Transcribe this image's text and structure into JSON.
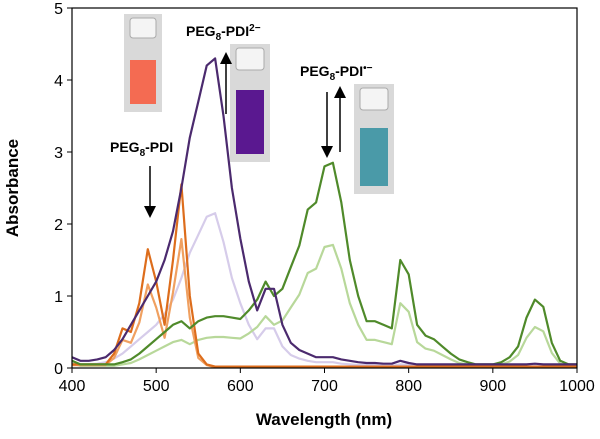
{
  "chart_data": {
    "type": "line",
    "xlabel": "Wavelength (nm)",
    "ylabel": "Absorbance",
    "xlim": [
      400,
      1000
    ],
    "ylim": [
      0,
      5
    ],
    "xticks": [
      400,
      500,
      600,
      700,
      800,
      900,
      1000
    ],
    "yticks": [
      0,
      1,
      2,
      3,
      4,
      5
    ],
    "x": [
      400,
      410,
      420,
      430,
      440,
      450,
      460,
      470,
      480,
      490,
      500,
      510,
      520,
      530,
      540,
      550,
      560,
      570,
      580,
      590,
      600,
      610,
      620,
      630,
      640,
      650,
      660,
      670,
      680,
      690,
      700,
      710,
      720,
      730,
      740,
      750,
      760,
      770,
      780,
      790,
      800,
      810,
      820,
      830,
      840,
      850,
      860,
      870,
      880,
      890,
      900,
      910,
      920,
      930,
      940,
      950,
      960,
      970,
      980,
      990,
      1000
    ],
    "series": [
      {
        "color": "#d6ccea",
        "values": [
          0.08,
          0.05,
          0.05,
          0.06,
          0.08,
          0.13,
          0.2,
          0.3,
          0.4,
          0.5,
          0.6,
          0.75,
          0.95,
          1.25,
          1.6,
          1.85,
          2.1,
          2.15,
          1.75,
          1.25,
          0.9,
          0.6,
          0.4,
          0.55,
          0.55,
          0.3,
          0.18,
          0.13,
          0.1,
          0.08,
          0.08,
          0.08,
          0.06,
          0.05,
          0.04,
          0.04,
          0.04,
          0.03,
          0.03,
          0.05,
          0.04,
          0.03,
          0.03,
          0.03,
          0.03,
          0.03,
          0.03,
          0.03,
          0.03,
          0.03,
          0.03,
          0.03,
          0.03,
          0.03,
          0.03,
          0.03,
          0.03,
          0.03,
          0.03,
          0.03,
          0.03
        ]
      },
      {
        "color": "#b8d89a",
        "values": [
          0.06,
          0.03,
          0.03,
          0.03,
          0.03,
          0.03,
          0.05,
          0.07,
          0.12,
          0.18,
          0.24,
          0.3,
          0.36,
          0.39,
          0.33,
          0.39,
          0.42,
          0.43,
          0.43,
          0.42,
          0.41,
          0.48,
          0.57,
          0.72,
          0.6,
          0.66,
          0.84,
          1.02,
          1.32,
          1.38,
          1.68,
          1.71,
          1.38,
          0.9,
          0.6,
          0.39,
          0.39,
          0.36,
          0.33,
          0.9,
          0.78,
          0.36,
          0.27,
          0.24,
          0.18,
          0.12,
          0.07,
          0.05,
          0.03,
          0.03,
          0.03,
          0.05,
          0.09,
          0.18,
          0.42,
          0.57,
          0.51,
          0.21,
          0.06,
          0.03,
          0.03
        ]
      },
      {
        "color": "#f0a060",
        "values": [
          0.04,
          0.04,
          0.04,
          0.04,
          0.04,
          0.14,
          0.39,
          0.35,
          0.63,
          1.16,
          0.84,
          0.42,
          1.05,
          1.79,
          0.7,
          0.14,
          0.04,
          0.01,
          0.01,
          0.01,
          0.01,
          0.01,
          0.01,
          0.01,
          0.01,
          0.01,
          0.01,
          0.01,
          0.01,
          0.01,
          0.01,
          0.01,
          0.01,
          0.01,
          0.01,
          0.01,
          0.01,
          0.01,
          0.01,
          0.01,
          0.01,
          0.01,
          0.01,
          0.01,
          0.01,
          0.01,
          0.01,
          0.01,
          0.01,
          0.01,
          0.01,
          0.01,
          0.01,
          0.01,
          0.01,
          0.01,
          0.01,
          0.01,
          0.01,
          0.01,
          0.01
        ]
      },
      {
        "color": "#dd6d1c",
        "values": [
          0.05,
          0.05,
          0.05,
          0.05,
          0.05,
          0.2,
          0.55,
          0.5,
          0.9,
          1.65,
          1.2,
          0.6,
          1.5,
          2.55,
          1.0,
          0.2,
          0.05,
          0.02,
          0.02,
          0.02,
          0.02,
          0.02,
          0.02,
          0.02,
          0.02,
          0.02,
          0.02,
          0.02,
          0.02,
          0.02,
          0.02,
          0.02,
          0.02,
          0.02,
          0.02,
          0.02,
          0.02,
          0.02,
          0.02,
          0.02,
          0.02,
          0.02,
          0.02,
          0.02,
          0.02,
          0.02,
          0.02,
          0.02,
          0.02,
          0.02,
          0.02,
          0.02,
          0.02,
          0.02,
          0.02,
          0.02,
          0.02,
          0.02,
          0.02,
          0.02,
          0.02
        ]
      },
      {
        "color": "#4f8a2a",
        "values": [
          0.1,
          0.05,
          0.05,
          0.05,
          0.05,
          0.05,
          0.08,
          0.12,
          0.2,
          0.3,
          0.4,
          0.5,
          0.6,
          0.65,
          0.55,
          0.65,
          0.7,
          0.72,
          0.72,
          0.7,
          0.68,
          0.8,
          0.95,
          1.2,
          1.0,
          1.1,
          1.4,
          1.7,
          2.2,
          2.3,
          2.8,
          2.85,
          2.3,
          1.5,
          1.0,
          0.65,
          0.65,
          0.6,
          0.55,
          1.5,
          1.3,
          0.6,
          0.45,
          0.4,
          0.3,
          0.2,
          0.12,
          0.08,
          0.05,
          0.05,
          0.05,
          0.08,
          0.15,
          0.3,
          0.7,
          0.95,
          0.85,
          0.35,
          0.1,
          0.05,
          0.05
        ]
      },
      {
        "color": "#4b2a6e",
        "values": [
          0.15,
          0.1,
          0.1,
          0.12,
          0.15,
          0.25,
          0.4,
          0.6,
          0.8,
          1.0,
          1.2,
          1.5,
          1.9,
          2.5,
          3.2,
          3.7,
          4.2,
          4.3,
          3.5,
          2.5,
          1.8,
          1.2,
          0.8,
          1.1,
          1.1,
          0.6,
          0.35,
          0.25,
          0.2,
          0.15,
          0.15,
          0.15,
          0.12,
          0.1,
          0.08,
          0.07,
          0.07,
          0.06,
          0.06,
          0.1,
          0.07,
          0.05,
          0.05,
          0.05,
          0.05,
          0.05,
          0.05,
          0.05,
          0.05,
          0.05,
          0.05,
          0.05,
          0.05,
          0.05,
          0.05,
          0.06,
          0.05,
          0.05,
          0.05,
          0.05,
          0.05
        ]
      }
    ],
    "annotations": [
      {
        "text": "PEG",
        "sub": "8",
        "rest": "-PDI"
      },
      {
        "text": "PEG",
        "sub": "8",
        "rest": "-PDI",
        "sup": "2−"
      },
      {
        "text": "PEG",
        "sub": "8",
        "rest": "-PDI",
        "sup": "•−"
      }
    ]
  }
}
